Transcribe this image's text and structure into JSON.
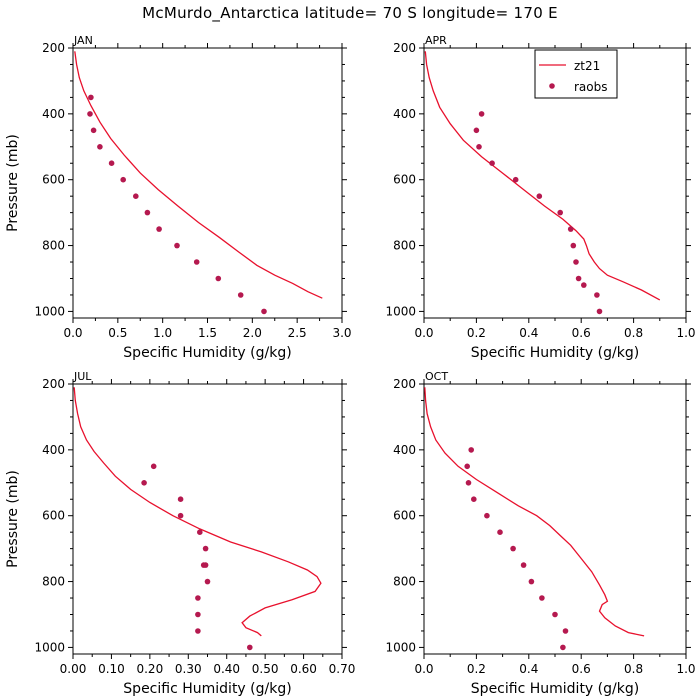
{
  "chart_data": {
    "title": "McMurdo_Antarctica  latitude= 70 S longitude= 170 E",
    "type": "line",
    "legend": {
      "position": "top-right of APR panel",
      "entries": [
        {
          "name": "zt21",
          "style": "line",
          "color": "#e8112d"
        },
        {
          "name": "raobs",
          "style": "dots",
          "color": "#b5194f"
        }
      ]
    },
    "ylabel": "Pressure (mb)",
    "xlabel": "Specific Humidity (g/kg)",
    "ylim": [
      200,
      1000
    ],
    "ylim_display": [
      200,
      1020
    ],
    "yticks": [
      200,
      400,
      600,
      800,
      1000
    ],
    "panels": [
      {
        "label": "JAN",
        "xlim": [
          0,
          3.0
        ],
        "xticks": [
          0,
          0.5,
          1.0,
          1.5,
          2.0,
          2.5,
          3.0
        ],
        "xtick_labels": [
          "0.0",
          "0.5",
          "1.0",
          "1.5",
          "2.0",
          "2.5",
          "3.0"
        ],
        "model": {
          "name": "zt21",
          "x": [
            0.02,
            0.04,
            0.07,
            0.12,
            0.2,
            0.3,
            0.42,
            0.57,
            0.75,
            0.95,
            1.17,
            1.4,
            1.63,
            1.85,
            2.05,
            2.25,
            2.45,
            2.62,
            2.78
          ],
          "y": [
            210,
            250,
            290,
            330,
            375,
            425,
            475,
            525,
            580,
            630,
            680,
            730,
            775,
            820,
            860,
            890,
            915,
            940,
            960
          ]
        },
        "obs": {
          "name": "raobs",
          "x": [
            0.2,
            0.19,
            0.23,
            0.3,
            0.43,
            0.56,
            0.7,
            0.83,
            0.96,
            1.16,
            1.38,
            1.62,
            1.87,
            2.13
          ],
          "y": [
            350,
            400,
            450,
            500,
            550,
            600,
            650,
            700,
            750,
            800,
            850,
            900,
            950,
            1000
          ]
        }
      },
      {
        "label": "APR",
        "xlim": [
          0,
          1.0
        ],
        "xticks": [
          0,
          0.2,
          0.4,
          0.6,
          0.8,
          1.0
        ],
        "xtick_labels": [
          "0.0",
          "0.2",
          "0.4",
          "0.6",
          "0.8",
          "1.0"
        ],
        "model": {
          "name": "zt21",
          "x": [
            0.005,
            0.01,
            0.02,
            0.035,
            0.06,
            0.1,
            0.15,
            0.22,
            0.3,
            0.38,
            0.46,
            0.53,
            0.58,
            0.61,
            0.62,
            0.63,
            0.65,
            0.67,
            0.7,
            0.76,
            0.83,
            0.9
          ],
          "y": [
            210,
            250,
            290,
            330,
            380,
            430,
            480,
            530,
            580,
            630,
            680,
            720,
            755,
            780,
            800,
            825,
            850,
            870,
            890,
            910,
            935,
            965
          ]
        },
        "obs": {
          "name": "raobs",
          "x": [
            0.22,
            0.2,
            0.21,
            0.26,
            0.35,
            0.44,
            0.52,
            0.56,
            0.57,
            0.58,
            0.59,
            0.61,
            0.66,
            0.67
          ],
          "y": [
            400,
            450,
            500,
            550,
            600,
            650,
            700,
            750,
            800,
            850,
            900,
            920,
            950,
            1000
          ]
        }
      },
      {
        "label": "JUL",
        "xlim": [
          0,
          0.7
        ],
        "xticks": [
          0,
          0.1,
          0.2,
          0.3,
          0.4,
          0.5,
          0.6,
          0.7
        ],
        "xtick_labels": [
          "0.00",
          "0.10",
          "0.20",
          "0.30",
          "0.40",
          "0.50",
          "0.60",
          "0.70"
        ],
        "model": {
          "name": "zt21",
          "x": [
            0.003,
            0.006,
            0.012,
            0.02,
            0.035,
            0.055,
            0.08,
            0.11,
            0.15,
            0.2,
            0.26,
            0.33,
            0.41,
            0.49,
            0.56,
            0.61,
            0.635,
            0.645,
            0.63,
            0.57,
            0.5,
            0.46,
            0.44,
            0.45,
            0.48,
            0.49
          ],
          "y": [
            210,
            250,
            290,
            330,
            370,
            405,
            440,
            480,
            520,
            560,
            600,
            640,
            680,
            710,
            740,
            765,
            785,
            805,
            830,
            855,
            880,
            905,
            925,
            940,
            955,
            965
          ]
        },
        "obs": {
          "name": "raobs",
          "x": [
            0.21,
            0.185,
            0.28,
            0.28,
            0.33,
            0.345,
            0.34,
            0.345,
            0.35,
            0.325,
            0.325,
            0.325,
            0.46
          ],
          "y": [
            450,
            500,
            550,
            600,
            650,
            700,
            750,
            750,
            800,
            850,
            900,
            950,
            1000
          ]
        }
      },
      {
        "label": "OCT",
        "xlim": [
          0,
          1.0
        ],
        "xticks": [
          0,
          0.2,
          0.4,
          0.6,
          0.8,
          1.0
        ],
        "xtick_labels": [
          "0.0",
          "0.2",
          "0.4",
          "0.6",
          "0.8",
          "1.0"
        ],
        "model": {
          "name": "zt21",
          "x": [
            0.003,
            0.006,
            0.012,
            0.025,
            0.045,
            0.08,
            0.13,
            0.2,
            0.28,
            0.36,
            0.43,
            0.48,
            0.52,
            0.56,
            0.6,
            0.64,
            0.67,
            0.69,
            0.7,
            0.68,
            0.67,
            0.69,
            0.73,
            0.78,
            0.84
          ],
          "y": [
            210,
            250,
            290,
            330,
            370,
            410,
            450,
            490,
            530,
            570,
            600,
            630,
            660,
            690,
            730,
            770,
            810,
            840,
            860,
            870,
            890,
            910,
            935,
            955,
            965
          ]
        },
        "obs": {
          "name": "raobs",
          "x": [
            0.18,
            0.165,
            0.17,
            0.19,
            0.24,
            0.29,
            0.34,
            0.38,
            0.41,
            0.45,
            0.5,
            0.54,
            0.53
          ],
          "y": [
            400,
            450,
            500,
            550,
            600,
            650,
            700,
            750,
            800,
            850,
            900,
            950,
            1000
          ]
        }
      }
    ]
  }
}
